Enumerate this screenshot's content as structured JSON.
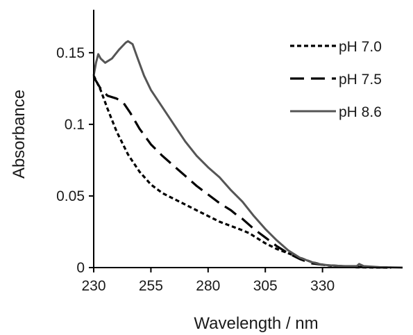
{
  "chart_data": {
    "type": "line",
    "title": "",
    "xlabel": "Wavelength / nm",
    "ylabel": "Absorbance",
    "xlim": [
      230,
      365
    ],
    "ylim": [
      0,
      0.18
    ],
    "x_ticks": [
      230,
      255,
      280,
      305,
      330
    ],
    "x_tick_labels": [
      "230",
      "255",
      "280",
      "305",
      "330"
    ],
    "y_ticks": [
      0,
      0.05,
      0.1,
      0.15
    ],
    "y_tick_labels": [
      "0",
      "0.05",
      "0.1",
      "0.15"
    ],
    "grid": false,
    "legend_position": "top-right",
    "series": [
      {
        "name": "pH 7.0",
        "color": "#000000",
        "line_style": "dotted",
        "points": [
          [
            230,
            0.134
          ],
          [
            233,
            0.124
          ],
          [
            236,
            0.111
          ],
          [
            240,
            0.095
          ],
          [
            245,
            0.079
          ],
          [
            250,
            0.067
          ],
          [
            255,
            0.058
          ],
          [
            260,
            0.052
          ],
          [
            265,
            0.048
          ],
          [
            270,
            0.044
          ],
          [
            275,
            0.04
          ],
          [
            280,
            0.036
          ],
          [
            285,
            0.032
          ],
          [
            290,
            0.029
          ],
          [
            295,
            0.026
          ],
          [
            298,
            0.024
          ],
          [
            300,
            0.022
          ],
          [
            305,
            0.017
          ],
          [
            310,
            0.013
          ],
          [
            315,
            0.01
          ],
          [
            320,
            0.007
          ],
          [
            325,
            0.004
          ],
          [
            330,
            0.002
          ],
          [
            335,
            0.001
          ],
          [
            340,
            0.0005
          ],
          [
            345,
            0.0002
          ],
          [
            350,
            0.0001
          ],
          [
            360,
            0.0
          ]
        ]
      },
      {
        "name": "pH 7.5",
        "color": "#000000",
        "line_style": "dashed",
        "points": [
          [
            230,
            0.133
          ],
          [
            233,
            0.125
          ],
          [
            236,
            0.12
          ],
          [
            240,
            0.118
          ],
          [
            243,
            0.115
          ],
          [
            246,
            0.108
          ],
          [
            250,
            0.097
          ],
          [
            255,
            0.086
          ],
          [
            260,
            0.078
          ],
          [
            265,
            0.071
          ],
          [
            270,
            0.064
          ],
          [
            275,
            0.057
          ],
          [
            280,
            0.051
          ],
          [
            285,
            0.045
          ],
          [
            290,
            0.04
          ],
          [
            293,
            0.036
          ],
          [
            295,
            0.034
          ],
          [
            300,
            0.027
          ],
          [
            305,
            0.021
          ],
          [
            310,
            0.015
          ],
          [
            315,
            0.01
          ],
          [
            320,
            0.006
          ],
          [
            325,
            0.003
          ],
          [
            330,
            0.002
          ],
          [
            340,
            0.0008
          ],
          [
            350,
            0.0003
          ],
          [
            360,
            0.0
          ]
        ]
      },
      {
        "name": "pH 8.6",
        "color": "#555555",
        "line_style": "solid",
        "points": [
          [
            230,
            0.134
          ],
          [
            231,
            0.143
          ],
          [
            232,
            0.149
          ],
          [
            233,
            0.146
          ],
          [
            235,
            0.143
          ],
          [
            238,
            0.146
          ],
          [
            241,
            0.152
          ],
          [
            244,
            0.157
          ],
          [
            245,
            0.158
          ],
          [
            247,
            0.156
          ],
          [
            249,
            0.147
          ],
          [
            252,
            0.134
          ],
          [
            255,
            0.124
          ],
          [
            260,
            0.112
          ],
          [
            265,
            0.1
          ],
          [
            270,
            0.088
          ],
          [
            275,
            0.078
          ],
          [
            280,
            0.07
          ],
          [
            285,
            0.063
          ],
          [
            290,
            0.054
          ],
          [
            295,
            0.046
          ],
          [
            300,
            0.036
          ],
          [
            305,
            0.027
          ],
          [
            310,
            0.019
          ],
          [
            315,
            0.012
          ],
          [
            320,
            0.007
          ],
          [
            325,
            0.004
          ],
          [
            330,
            0.002
          ],
          [
            335,
            0.0013
          ],
          [
            340,
            0.001
          ],
          [
            345,
            0.001
          ],
          [
            346,
            0.0025
          ],
          [
            348,
            0.001
          ],
          [
            355,
            0.0003
          ],
          [
            365,
            0.0
          ]
        ]
      }
    ]
  }
}
